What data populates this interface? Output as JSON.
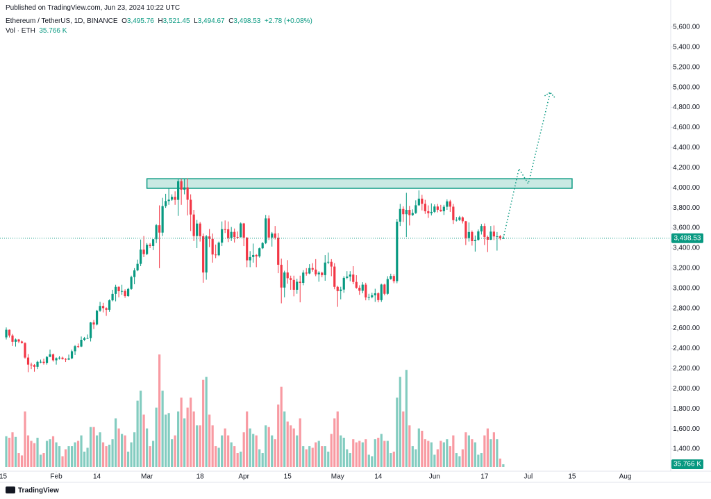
{
  "header": {
    "published": "Published on TradingView.com, Jun 23, 2024 10:22 UTC",
    "symbol": "Ethereum / TetherUS, 1D, BINANCE",
    "ohlc": [
      "O",
      "3,495.76",
      "H",
      "3,521.45",
      "L",
      "3,494.67",
      "C",
      "3,498.53",
      "+2.78 (+0.08%)"
    ],
    "vol_title": "Vol · ETH",
    "vol_value": "35.766 K"
  },
  "footer": {
    "brand": "TradingView"
  },
  "chart_data": {
    "type": "candlestick",
    "grid": false,
    "up_color": "#089981",
    "down_color": "#f23645",
    "vol_up_color": "rgba(8,153,129,0.5)",
    "vol_down_color": "rgba(242,54,69,0.5)",
    "zone_color": "#089981",
    "projection_color": "#089981",
    "xlim": [
      "Jan 14",
      "Aug 16"
    ],
    "ylim": [
      1200,
      5800
    ],
    "yticks": [
      {
        "value": 1400,
        "label": "1,400.00"
      },
      {
        "value": 1600,
        "label": "1,600.00"
      },
      {
        "value": 1800,
        "label": "1,800.00"
      },
      {
        "value": 2000,
        "label": "2,000.00"
      },
      {
        "value": 2200,
        "label": "2,200.00"
      },
      {
        "value": 2400,
        "label": "2,400.00"
      },
      {
        "value": 2600,
        "label": "2,600.00"
      },
      {
        "value": 2800,
        "label": "2,800.00"
      },
      {
        "value": 3000,
        "label": "3,000.00"
      },
      {
        "value": 3200,
        "label": "3,200.00"
      },
      {
        "value": 3400,
        "label": "3,400.00"
      },
      {
        "value": 3600,
        "label": "3,600.00"
      },
      {
        "value": 3800,
        "label": "3,800.00"
      },
      {
        "value": 4000,
        "label": "4,000.00"
      },
      {
        "value": 4200,
        "label": "4,200.00"
      },
      {
        "value": 4400,
        "label": "4,400.00"
      },
      {
        "value": 4600,
        "label": "4,600.00"
      },
      {
        "value": 4800,
        "label": "4,800.00"
      },
      {
        "value": 5000,
        "label": "5,000.00"
      },
      {
        "value": 5200,
        "label": "5,200.00"
      },
      {
        "value": 5400,
        "label": "5,400.00"
      },
      {
        "value": 5600,
        "label": "5,600.00"
      }
    ],
    "xticks": [
      {
        "value": "Jan 15",
        "label": "15"
      },
      {
        "value": "Feb 1",
        "label": "Feb"
      },
      {
        "value": "Feb 14",
        "label": "14"
      },
      {
        "value": "Mar 1",
        "label": "Mar"
      },
      {
        "value": "Mar 18",
        "label": "18"
      },
      {
        "value": "Apr 1",
        "label": "Apr"
      },
      {
        "value": "Apr 15",
        "label": "15"
      },
      {
        "value": "May 1",
        "label": "May"
      },
      {
        "value": "May 14",
        "label": "14"
      },
      {
        "value": "Jun 1",
        "label": "Jun"
      },
      {
        "value": "Jun 17",
        "label": "17"
      },
      {
        "value": "Jul 1",
        "label": "Jul"
      },
      {
        "value": "Jul 15",
        "label": "15"
      },
      {
        "value": "Aug 1",
        "label": "Aug"
      }
    ],
    "x": [
      "Jan 16",
      "Jan 17",
      "Jan 18",
      "Jan 19",
      "Jan 20",
      "Jan 21",
      "Jan 22",
      "Jan 23",
      "Jan 24",
      "Jan 25",
      "Jan 26",
      "Jan 27",
      "Jan 28",
      "Jan 29",
      "Jan 30",
      "Jan 31",
      "Feb 1",
      "Feb 2",
      "Feb 3",
      "Feb 4",
      "Feb 5",
      "Feb 6",
      "Feb 7",
      "Feb 8",
      "Feb 9",
      "Feb 10",
      "Feb 11",
      "Feb 12",
      "Feb 13",
      "Feb 14",
      "Feb 15",
      "Feb 16",
      "Feb 17",
      "Feb 18",
      "Feb 19",
      "Feb 20",
      "Feb 21",
      "Feb 22",
      "Feb 23",
      "Feb 24",
      "Feb 25",
      "Feb 26",
      "Feb 27",
      "Feb 28",
      "Feb 29",
      "Mar 1",
      "Mar 2",
      "Mar 3",
      "Mar 4",
      "Mar 5",
      "Mar 6",
      "Mar 7",
      "Mar 8",
      "Mar 9",
      "Mar 10",
      "Mar 11",
      "Mar 12",
      "Mar 13",
      "Mar 14",
      "Mar 15",
      "Mar 16",
      "Mar 17",
      "Mar 18",
      "Mar 19",
      "Mar 20",
      "Mar 21",
      "Mar 22",
      "Mar 23",
      "Mar 24",
      "Mar 25",
      "Mar 26",
      "Mar 27",
      "Mar 28",
      "Mar 29",
      "Mar 30",
      "Mar 31",
      "Apr 1",
      "Apr 2",
      "Apr 3",
      "Apr 4",
      "Apr 5",
      "Apr 6",
      "Apr 7",
      "Apr 8",
      "Apr 9",
      "Apr 10",
      "Apr 11",
      "Apr 12",
      "Apr 13",
      "Apr 14",
      "Apr 15",
      "Apr 16",
      "Apr 17",
      "Apr 18",
      "Apr 19",
      "Apr 20",
      "Apr 21",
      "Apr 22",
      "Apr 23",
      "Apr 24",
      "Apr 25",
      "Apr 26",
      "Apr 27",
      "Apr 28",
      "Apr 29",
      "Apr 30",
      "May 1",
      "May 2",
      "May 3",
      "May 4",
      "May 5",
      "May 6",
      "May 7",
      "May 8",
      "May 9",
      "May 10",
      "May 11",
      "May 12",
      "May 13",
      "May 14",
      "May 15",
      "May 16",
      "May 17",
      "May 18",
      "May 19",
      "May 20",
      "May 21",
      "May 22",
      "May 23",
      "May 24",
      "May 25",
      "May 26",
      "May 27",
      "May 28",
      "May 29",
      "May 30",
      "May 31",
      "Jun 1",
      "Jun 2",
      "Jun 3",
      "Jun 4",
      "Jun 5",
      "Jun 6",
      "Jun 7",
      "Jun 8",
      "Jun 9",
      "Jun 10",
      "Jun 11",
      "Jun 12",
      "Jun 13",
      "Jun 14",
      "Jun 15",
      "Jun 16",
      "Jun 17",
      "Jun 18",
      "Jun 19",
      "Jun 20",
      "Jun 21",
      "Jun 22",
      "Jun 23"
    ],
    "ohlc": [
      [
        2511,
        2610,
        2490,
        2587
      ],
      [
        2587,
        2590,
        2510,
        2530
      ],
      [
        2530,
        2545,
        2425,
        2467
      ],
      [
        2467,
        2500,
        2420,
        2490
      ],
      [
        2490,
        2495,
        2455,
        2470
      ],
      [
        2470,
        2480,
        2450,
        2455
      ],
      [
        2455,
        2462,
        2300,
        2310
      ],
      [
        2310,
        2345,
        2165,
        2240
      ],
      [
        2240,
        2260,
        2195,
        2236
      ],
      [
        2236,
        2245,
        2170,
        2218
      ],
      [
        2218,
        2280,
        2195,
        2267
      ],
      [
        2267,
        2290,
        2255,
        2268
      ],
      [
        2268,
        2300,
        2240,
        2257
      ],
      [
        2257,
        2325,
        2240,
        2317
      ],
      [
        2317,
        2390,
        2315,
        2343
      ],
      [
        2343,
        2350,
        2270,
        2283
      ],
      [
        2283,
        2312,
        2240,
        2304
      ],
      [
        2304,
        2325,
        2290,
        2309
      ],
      [
        2309,
        2320,
        2290,
        2296
      ],
      [
        2296,
        2305,
        2265,
        2290
      ],
      [
        2290,
        2340,
        2285,
        2302
      ],
      [
        2302,
        2390,
        2295,
        2373
      ],
      [
        2373,
        2435,
        2335,
        2423
      ],
      [
        2423,
        2450,
        2405,
        2420
      ],
      [
        2420,
        2520,
        2415,
        2487
      ],
      [
        2487,
        2515,
        2475,
        2504
      ],
      [
        2504,
        2540,
        2495,
        2505
      ],
      [
        2505,
        2665,
        2470,
        2660
      ],
      [
        2660,
        2685,
        2595,
        2640
      ],
      [
        2640,
        2785,
        2630,
        2777
      ],
      [
        2777,
        2865,
        2765,
        2824
      ],
      [
        2824,
        2855,
        2760,
        2802
      ],
      [
        2802,
        2810,
        2725,
        2785
      ],
      [
        2785,
        2890,
        2765,
        2880
      ],
      [
        2880,
        2985,
        2870,
        2944
      ],
      [
        2944,
        3035,
        2870,
        3014
      ],
      [
        3014,
        3020,
        2910,
        2971
      ],
      [
        2971,
        3035,
        2935,
        2973
      ],
      [
        2973,
        2990,
        2905,
        2922
      ],
      [
        2922,
        3005,
        2915,
        2993
      ],
      [
        2993,
        3125,
        2985,
        3112
      ],
      [
        3112,
        3200,
        3040,
        3178
      ],
      [
        3178,
        3285,
        3170,
        3243
      ],
      [
        3243,
        3485,
        3220,
        3385
      ],
      [
        3385,
        3520,
        3310,
        3340
      ],
      [
        3340,
        3450,
        3330,
        3433
      ],
      [
        3433,
        3450,
        3400,
        3421
      ],
      [
        3421,
        3490,
        3380,
        3488
      ],
      [
        3488,
        3640,
        3450,
        3627
      ],
      [
        3627,
        3825,
        3200,
        3554
      ],
      [
        3554,
        3900,
        3520,
        3818
      ],
      [
        3818,
        3940,
        3800,
        3868
      ],
      [
        3868,
        3995,
        3830,
        3882
      ],
      [
        3882,
        3935,
        3870,
        3910
      ],
      [
        3910,
        3965,
        3830,
        3880
      ],
      [
        3880,
        4085,
        3720,
        4066
      ],
      [
        4066,
        4090,
        3830,
        3981
      ],
      [
        3981,
        4085,
        3935,
        4004
      ],
      [
        4004,
        4095,
        3725,
        3881
      ],
      [
        3881,
        3935,
        3570,
        3734
      ],
      [
        3734,
        3780,
        3470,
        3520
      ],
      [
        3520,
        3680,
        3400,
        3644
      ],
      [
        3644,
        3660,
        3465,
        3518
      ],
      [
        3518,
        3545,
        3055,
        3157
      ],
      [
        3157,
        3530,
        3085,
        3516
      ],
      [
        3516,
        3590,
        3410,
        3492
      ],
      [
        3492,
        3545,
        3255,
        3336
      ],
      [
        3336,
        3435,
        3300,
        3329
      ],
      [
        3329,
        3465,
        3320,
        3454
      ],
      [
        3454,
        3665,
        3420,
        3588
      ],
      [
        3588,
        3675,
        3550,
        3587
      ],
      [
        3587,
        3665,
        3460,
        3500
      ],
      [
        3500,
        3610,
        3470,
        3561
      ],
      [
        3561,
        3595,
        3455,
        3510
      ],
      [
        3510,
        3565,
        3490,
        3508
      ],
      [
        3508,
        3655,
        3505,
        3645
      ],
      [
        3645,
        3650,
        3420,
        3504
      ],
      [
        3504,
        3510,
        3210,
        3278
      ],
      [
        3278,
        3370,
        3210,
        3311
      ],
      [
        3311,
        3445,
        3255,
        3331
      ],
      [
        3331,
        3340,
        3210,
        3318
      ],
      [
        3318,
        3405,
        3305,
        3398
      ],
      [
        3398,
        3460,
        3390,
        3450
      ],
      [
        3450,
        3730,
        3440,
        3695
      ],
      [
        3695,
        3725,
        3480,
        3505
      ],
      [
        3505,
        3560,
        3415,
        3545
      ],
      [
        3545,
        3620,
        3485,
        3503
      ],
      [
        3503,
        3550,
        3150,
        3234
      ],
      [
        3234,
        3295,
        2850,
        3007
      ],
      [
        3007,
        3175,
        2910,
        3157
      ],
      [
        3157,
        3280,
        3045,
        3100
      ],
      [
        3100,
        3125,
        2985,
        3083
      ],
      [
        3083,
        3125,
        2920,
        2985
      ],
      [
        2985,
        3095,
        2945,
        3065
      ],
      [
        3065,
        3125,
        2860,
        3054
      ],
      [
        3054,
        3180,
        3030,
        3156
      ],
      [
        3156,
        3200,
        3125,
        3147
      ],
      [
        3147,
        3240,
        3140,
        3201
      ],
      [
        3201,
        3250,
        3165,
        3186
      ],
      [
        3186,
        3290,
        3120,
        3139
      ],
      [
        3139,
        3170,
        3065,
        3155
      ],
      [
        3155,
        3165,
        3110,
        3131
      ],
      [
        3131,
        3330,
        3075,
        3256
      ],
      [
        3256,
        3355,
        3240,
        3263
      ],
      [
        3263,
        3290,
        3120,
        3216
      ],
      [
        3216,
        3250,
        2990,
        3014
      ],
      [
        3014,
        3025,
        2815,
        2972
      ],
      [
        2972,
        3015,
        2890,
        2987
      ],
      [
        2987,
        3120,
        2955,
        3103
      ],
      [
        3103,
        3170,
        3090,
        3117
      ],
      [
        3117,
        3170,
        3070,
        3137
      ],
      [
        3137,
        3220,
        3040,
        3063
      ],
      [
        3063,
        3130,
        2995,
        3005
      ],
      [
        3005,
        3030,
        2935,
        2975
      ],
      [
        2975,
        3060,
        2950,
        3036
      ],
      [
        3036,
        3055,
        2880,
        2909
      ],
      [
        2909,
        2945,
        2880,
        2912
      ],
      [
        2912,
        2955,
        2900,
        2930
      ],
      [
        2930,
        2995,
        2865,
        2950
      ],
      [
        2950,
        2960,
        2860,
        2882
      ],
      [
        2882,
        3045,
        2865,
        3037
      ],
      [
        3037,
        3045,
        2930,
        2945
      ],
      [
        2945,
        3120,
        2935,
        3092
      ],
      [
        3092,
        3145,
        3085,
        3122
      ],
      [
        3122,
        3140,
        3050,
        3071
      ],
      [
        3071,
        3690,
        3050,
        3663
      ],
      [
        3663,
        3840,
        3620,
        3789
      ],
      [
        3789,
        3815,
        3660,
        3737
      ],
      [
        3737,
        3950,
        3510,
        3780
      ],
      [
        3780,
        3820,
        3625,
        3728
      ],
      [
        3728,
        3785,
        3720,
        3749
      ],
      [
        3749,
        3875,
        3740,
        3826
      ],
      [
        3826,
        3975,
        3820,
        3892
      ],
      [
        3892,
        3930,
        3775,
        3841
      ],
      [
        3841,
        3880,
        3740,
        3767
      ],
      [
        3767,
        3825,
        3700,
        3747
      ],
      [
        3747,
        3845,
        3725,
        3760
      ],
      [
        3760,
        3835,
        3750,
        3814
      ],
      [
        3814,
        3840,
        3755,
        3781
      ],
      [
        3781,
        3830,
        3760,
        3767
      ],
      [
        3767,
        3830,
        3730,
        3811
      ],
      [
        3811,
        3885,
        3780,
        3865
      ],
      [
        3865,
        3880,
        3760,
        3812
      ],
      [
        3812,
        3840,
        3640,
        3678
      ],
      [
        3678,
        3710,
        3665,
        3681
      ],
      [
        3681,
        3720,
        3670,
        3706
      ],
      [
        3706,
        3715,
        3645,
        3667
      ],
      [
        3667,
        3670,
        3430,
        3499
      ],
      [
        3499,
        3655,
        3465,
        3560
      ],
      [
        3560,
        3575,
        3425,
        3469
      ],
      [
        3469,
        3525,
        3365,
        3481
      ],
      [
        3481,
        3585,
        3475,
        3566
      ],
      [
        3566,
        3640,
        3535,
        3620
      ],
      [
        3620,
        3645,
        3430,
        3511
      ],
      [
        3511,
        3525,
        3360,
        3483
      ],
      [
        3483,
        3620,
        3480,
        3564
      ],
      [
        3564,
        3625,
        3480,
        3516
      ],
      [
        3516,
        3560,
        3375,
        3518
      ],
      [
        3518,
        3530,
        3480,
        3495.76
      ],
      [
        3495.76,
        3521.45,
        3494.67,
        3498.53
      ]
    ],
    "volume": [
      400,
      380,
      450,
      390,
      180,
      150,
      720,
      410,
      340,
      310,
      380,
      160,
      180,
      340,
      360,
      400,
      320,
      270,
      140,
      230,
      270,
      270,
      320,
      340,
      410,
      200,
      250,
      520,
      520,
      410,
      450,
      320,
      270,
      290,
      360,
      630,
      500,
      430,
      410,
      200,
      320,
      450,
      860,
      990,
      680,
      500,
      270,
      340,
      770,
      1460,
      990,
      680,
      700,
      360,
      410,
      720,
      900,
      630,
      770,
      900,
      720,
      540,
      540,
      1130,
      1170,
      680,
      540,
      270,
      250,
      410,
      500,
      410,
      320,
      270,
      180,
      200,
      450,
      720,
      500,
      430,
      410,
      230,
      180,
      540,
      520,
      410,
      360,
      810,
      1040,
      720,
      590,
      540,
      500,
      410,
      630,
      270,
      230,
      270,
      250,
      320,
      340,
      270,
      270,
      200,
      430,
      630,
      720,
      410,
      380,
      230,
      180,
      360,
      320,
      340,
      320,
      360,
      160,
      140,
      360,
      380,
      430,
      340,
      340,
      180,
      200,
      900,
      1170,
      720,
      1260,
      540,
      270,
      230,
      500,
      470,
      360,
      340,
      320,
      160,
      230,
      340,
      320,
      360,
      270,
      410,
      180,
      140,
      230,
      450,
      410,
      360,
      320,
      160,
      180,
      410,
      500,
      360,
      450,
      360,
      110,
      35.766
    ],
    "last_price_label": "3,498.53",
    "last_volume_label": "35.766 K",
    "zone": {
      "x": [
        "Mar 1",
        "Jul 15"
      ],
      "y": [
        3995,
        4090
      ]
    },
    "projection": {
      "x": [
        "Jun 23",
        "Jun 28",
        "Jul 1",
        "Jul 8"
      ],
      "y": [
        3498,
        4190,
        4040,
        4950
      ]
    }
  }
}
